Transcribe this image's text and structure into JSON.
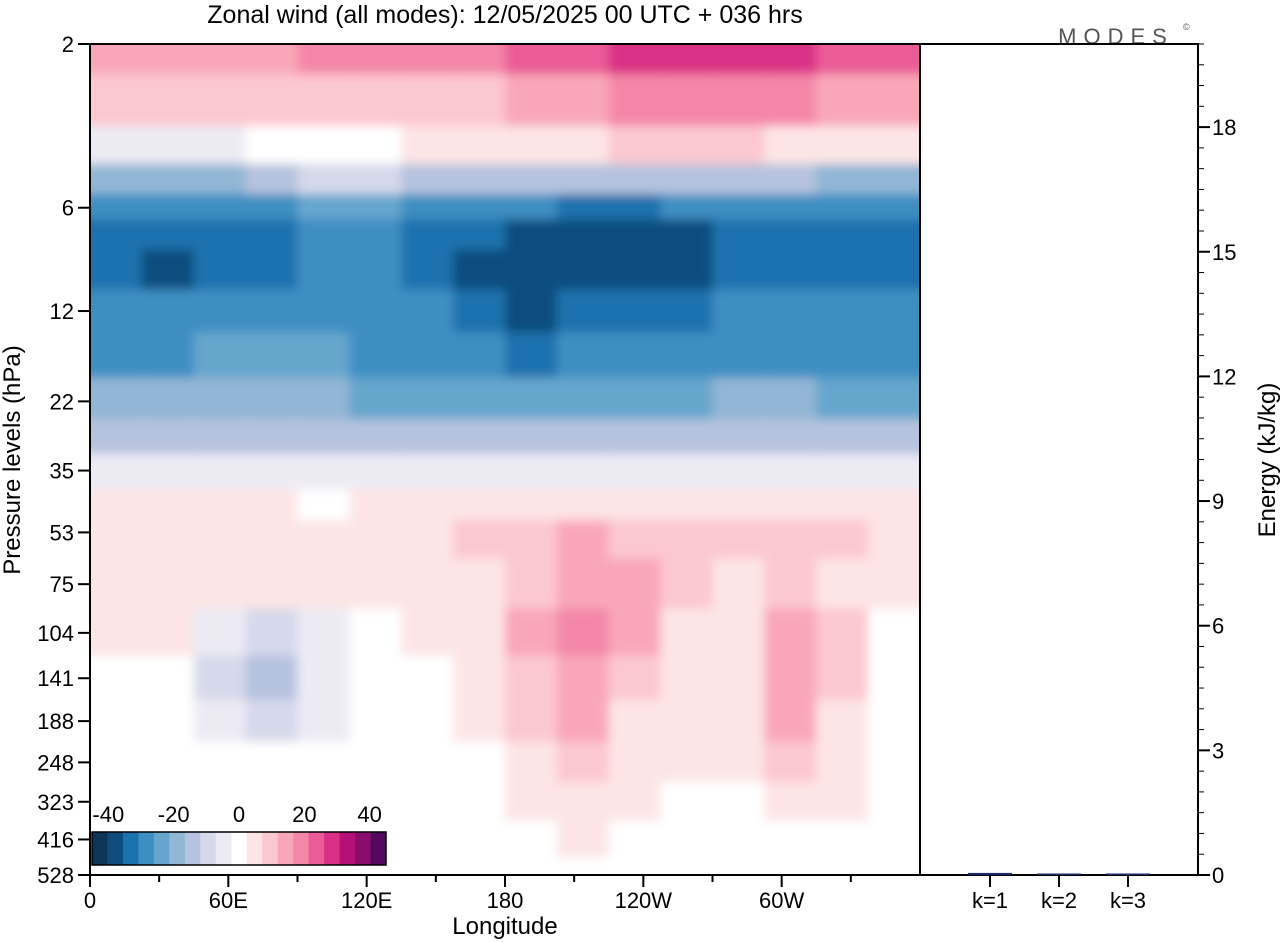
{
  "chart_data": [
    {
      "type": "heatmap",
      "title": "Zonal wind (all modes):  12/05/2025  00 UTC  + 036 hrs",
      "brand": "MODES",
      "brand_mark": "©",
      "xlabel": "Longitude",
      "ylabel": "Pressure levels (hPa)",
      "x_ticks": [
        "0",
        "60E",
        "120E",
        "180",
        "120W",
        "60W"
      ],
      "x_tick_values": [
        0,
        60,
        120,
        180,
        240,
        300
      ],
      "xlim": [
        0,
        360
      ],
      "y_scale": "log",
      "y_ticks": [
        "2",
        "6",
        "12",
        "22",
        "35",
        "53",
        "75",
        "104",
        "141",
        "188",
        "248",
        "323",
        "416",
        "528"
      ],
      "y_tick_values": [
        2,
        6,
        12,
        22,
        35,
        53,
        75,
        104,
        141,
        188,
        248,
        323,
        416,
        528
      ],
      "ylim": [
        528,
        2
      ],
      "colorbar": {
        "tick_labels": [
          "-40",
          "-20",
          "0",
          "20",
          "40"
        ],
        "tick_values": [
          -40,
          -20,
          0,
          20,
          40
        ],
        "levels": [
          -45,
          -40,
          -35,
          -30,
          -25,
          -20,
          -15,
          -10,
          -5,
          0,
          5,
          10,
          15,
          20,
          25,
          30,
          35,
          40,
          45
        ],
        "colors": [
          "#0e3556",
          "#0e4d7e",
          "#1a72ae",
          "#3c8fc2",
          "#66a6cd",
          "#92b6d6",
          "#b6c3de",
          "#d5d9ea",
          "#ecebf4",
          "#ffffff",
          "#fde5e5",
          "#fcc8cf",
          "#f9a7b8",
          "#f487a8",
          "#eb5c97",
          "#d93086",
          "#b50f78",
          "#8a0c6d",
          "#55085f"
        ]
      },
      "field_rows": [
        {
          "p": 2,
          "values": [
            16,
            16,
            16,
            16,
            18,
            20,
            22,
            22,
            24,
            26,
            28,
            30,
            30,
            28,
            26,
            24
          ]
        },
        {
          "p": 3,
          "values": [
            10,
            10,
            8,
            8,
            8,
            10,
            12,
            12,
            14,
            16,
            18,
            20,
            20,
            18,
            16,
            14
          ]
        },
        {
          "p": 4,
          "values": [
            -4,
            -4,
            -6,
            -2,
            2,
            2,
            4,
            4,
            6,
            6,
            8,
            8,
            8,
            6,
            6,
            4
          ]
        },
        {
          "p": 5,
          "values": [
            -20,
            -20,
            -22,
            -16,
            -12,
            -12,
            -14,
            -14,
            -14,
            -14,
            -14,
            -14,
            -14,
            -16,
            -18,
            -18
          ]
        },
        {
          "p": 6,
          "values": [
            -28,
            -30,
            -30,
            -28,
            -26,
            -26,
            -28,
            -30,
            -32,
            -34,
            -34,
            -32,
            -30,
            -30,
            -30,
            -30
          ]
        },
        {
          "p": 7,
          "values": [
            -34,
            -36,
            -36,
            -34,
            -32,
            -32,
            -34,
            -36,
            -38,
            -42,
            -40,
            -38,
            -36,
            -36,
            -36,
            -36
          ]
        },
        {
          "p": 9,
          "values": [
            -36,
            -38,
            -36,
            -34,
            -32,
            -32,
            -34,
            -38,
            -40,
            -40,
            -40,
            -38,
            -36,
            -36,
            -36,
            -36
          ]
        },
        {
          "p": 12,
          "values": [
            -32,
            -32,
            -28,
            -30,
            -30,
            -30,
            -30,
            -36,
            -38,
            -36,
            -34,
            -34,
            -32,
            -32,
            -30,
            -30
          ]
        },
        {
          "p": 16,
          "values": [
            -28,
            -28,
            -26,
            -26,
            -26,
            -28,
            -28,
            -32,
            -34,
            -32,
            -30,
            -30,
            -28,
            -28,
            -28,
            -28
          ]
        },
        {
          "p": 22,
          "values": [
            -22,
            -22,
            -22,
            -22,
            -22,
            -24,
            -24,
            -26,
            -26,
            -24,
            -24,
            -24,
            -22,
            -22,
            -24,
            -24
          ]
        },
        {
          "p": 28,
          "values": [
            -14,
            -14,
            -14,
            -14,
            -14,
            -16,
            -16,
            -16,
            -16,
            -16,
            -14,
            -14,
            -14,
            -14,
            -16,
            -16
          ]
        },
        {
          "p": 35,
          "values": [
            -4,
            -4,
            -4,
            -4,
            -4,
            -4,
            -4,
            -4,
            -4,
            -4,
            -4,
            -4,
            -4,
            -4,
            -4,
            -4
          ]
        },
        {
          "p": 45,
          "values": [
            4,
            3,
            3,
            3,
            2,
            3,
            4,
            5,
            6,
            6,
            6,
            5,
            5,
            5,
            4,
            4
          ]
        },
        {
          "p": 53,
          "values": [
            6,
            6,
            7,
            7,
            5,
            6,
            7,
            9,
            12,
            14,
            11,
            9,
            9,
            10,
            8,
            6
          ]
        },
        {
          "p": 75,
          "values": [
            5,
            5,
            6,
            5,
            4,
            6,
            5,
            7,
            12,
            15,
            13,
            9,
            6,
            11,
            6,
            4
          ]
        },
        {
          "p": 104,
          "values": [
            3,
            4,
            -4,
            -10,
            -4,
            2,
            3,
            5,
            16,
            20,
            14,
            6,
            4,
            14,
            8,
            2
          ]
        },
        {
          "p": 141,
          "values": [
            1,
            2,
            -8,
            -14,
            -6,
            1,
            2,
            4,
            12,
            16,
            10,
            5,
            4,
            17,
            10,
            2
          ]
        },
        {
          "p": 188,
          "values": [
            1,
            1,
            -4,
            -8,
            -3,
            0,
            1,
            3,
            8,
            14,
            7,
            4,
            4,
            16,
            6,
            1
          ]
        },
        {
          "p": 248,
          "values": [
            1,
            1,
            0,
            -2,
            0,
            1,
            1,
            2,
            6,
            10,
            6,
            3,
            3,
            10,
            4,
            1
          ]
        },
        {
          "p": 323,
          "values": [
            1,
            1,
            1,
            0,
            1,
            1,
            1,
            2,
            4,
            6,
            4,
            2,
            2,
            7,
            3,
            0
          ]
        },
        {
          "p": 416,
          "values": [
            0,
            1,
            1,
            1,
            1,
            1,
            1,
            1,
            2,
            3,
            2,
            1,
            -2,
            2,
            1,
            0
          ]
        },
        {
          "p": 528,
          "values": [
            0,
            0,
            1,
            1,
            1,
            1,
            1,
            1,
            1,
            1,
            1,
            0,
            -2,
            0,
            0,
            -2
          ]
        }
      ]
    },
    {
      "type": "bar",
      "categories": [
        "k=1",
        "k=2",
        "k=3"
      ],
      "values": [
        0.05,
        0.03,
        0.02
      ],
      "ylabel": "Energy (kJ/kg)",
      "ylim": [
        0,
        20
      ],
      "y_ticks": [
        "0",
        "3",
        "6",
        "9",
        "12",
        "15",
        "18"
      ],
      "y_tick_values": [
        0,
        3,
        6,
        9,
        12,
        15,
        18
      ],
      "bar_color": "#1a2a6a"
    }
  ]
}
